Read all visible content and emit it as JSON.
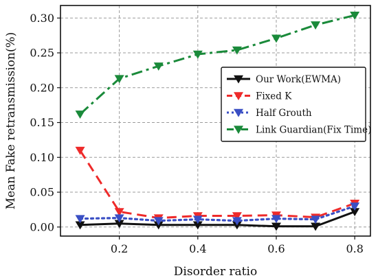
{
  "chart_data": {
    "type": "line",
    "title": "",
    "xlabel": "Disorder ratio",
    "ylabel": "Mean Fake retransmission(%)",
    "xlim": [
      0.05,
      0.84
    ],
    "ylim": [
      -0.013,
      0.318
    ],
    "x": [
      0.1,
      0.2,
      0.3,
      0.4,
      0.5,
      0.6,
      0.7,
      0.8
    ],
    "xticks": [
      0.2,
      0.4,
      0.6,
      0.8
    ],
    "xtick_labels": [
      "0.2",
      "0.4",
      "0.6",
      "0.8"
    ],
    "yticks": [
      0.0,
      0.05,
      0.1,
      0.15,
      0.2,
      0.25,
      0.3
    ],
    "ytick_labels": [
      "0.00",
      "0.05",
      "0.10",
      "0.15",
      "0.20",
      "0.25",
      "0.30"
    ],
    "grid": true,
    "legend_placement": "center-right",
    "series": [
      {
        "name": "Our Work(EWMA)",
        "color": "#111111",
        "line_style": "solid",
        "marker": "triangle-down",
        "values": [
          0.003,
          0.005,
          0.003,
          0.003,
          0.003,
          0.001,
          0.001,
          0.022
        ]
      },
      {
        "name": "Fixed K",
        "color": "#ee2a2a",
        "line_style": "dashed",
        "marker": "triangle-down",
        "values": [
          0.11,
          0.022,
          0.013,
          0.016,
          0.016,
          0.017,
          0.014,
          0.034
        ]
      },
      {
        "name": "Half Grouth",
        "color": "#3a4fc4",
        "line_style": "dotted",
        "marker": "triangle-down",
        "values": [
          0.012,
          0.013,
          0.009,
          0.011,
          0.009,
          0.012,
          0.011,
          0.03
        ]
      },
      {
        "name": "Link Guardian(Fix Time)",
        "color": "#1a8a3a",
        "line_style": "dashdot",
        "marker": "triangle-down",
        "values": [
          0.162,
          0.213,
          0.231,
          0.248,
          0.254,
          0.271,
          0.29,
          0.304
        ]
      }
    ]
  }
}
